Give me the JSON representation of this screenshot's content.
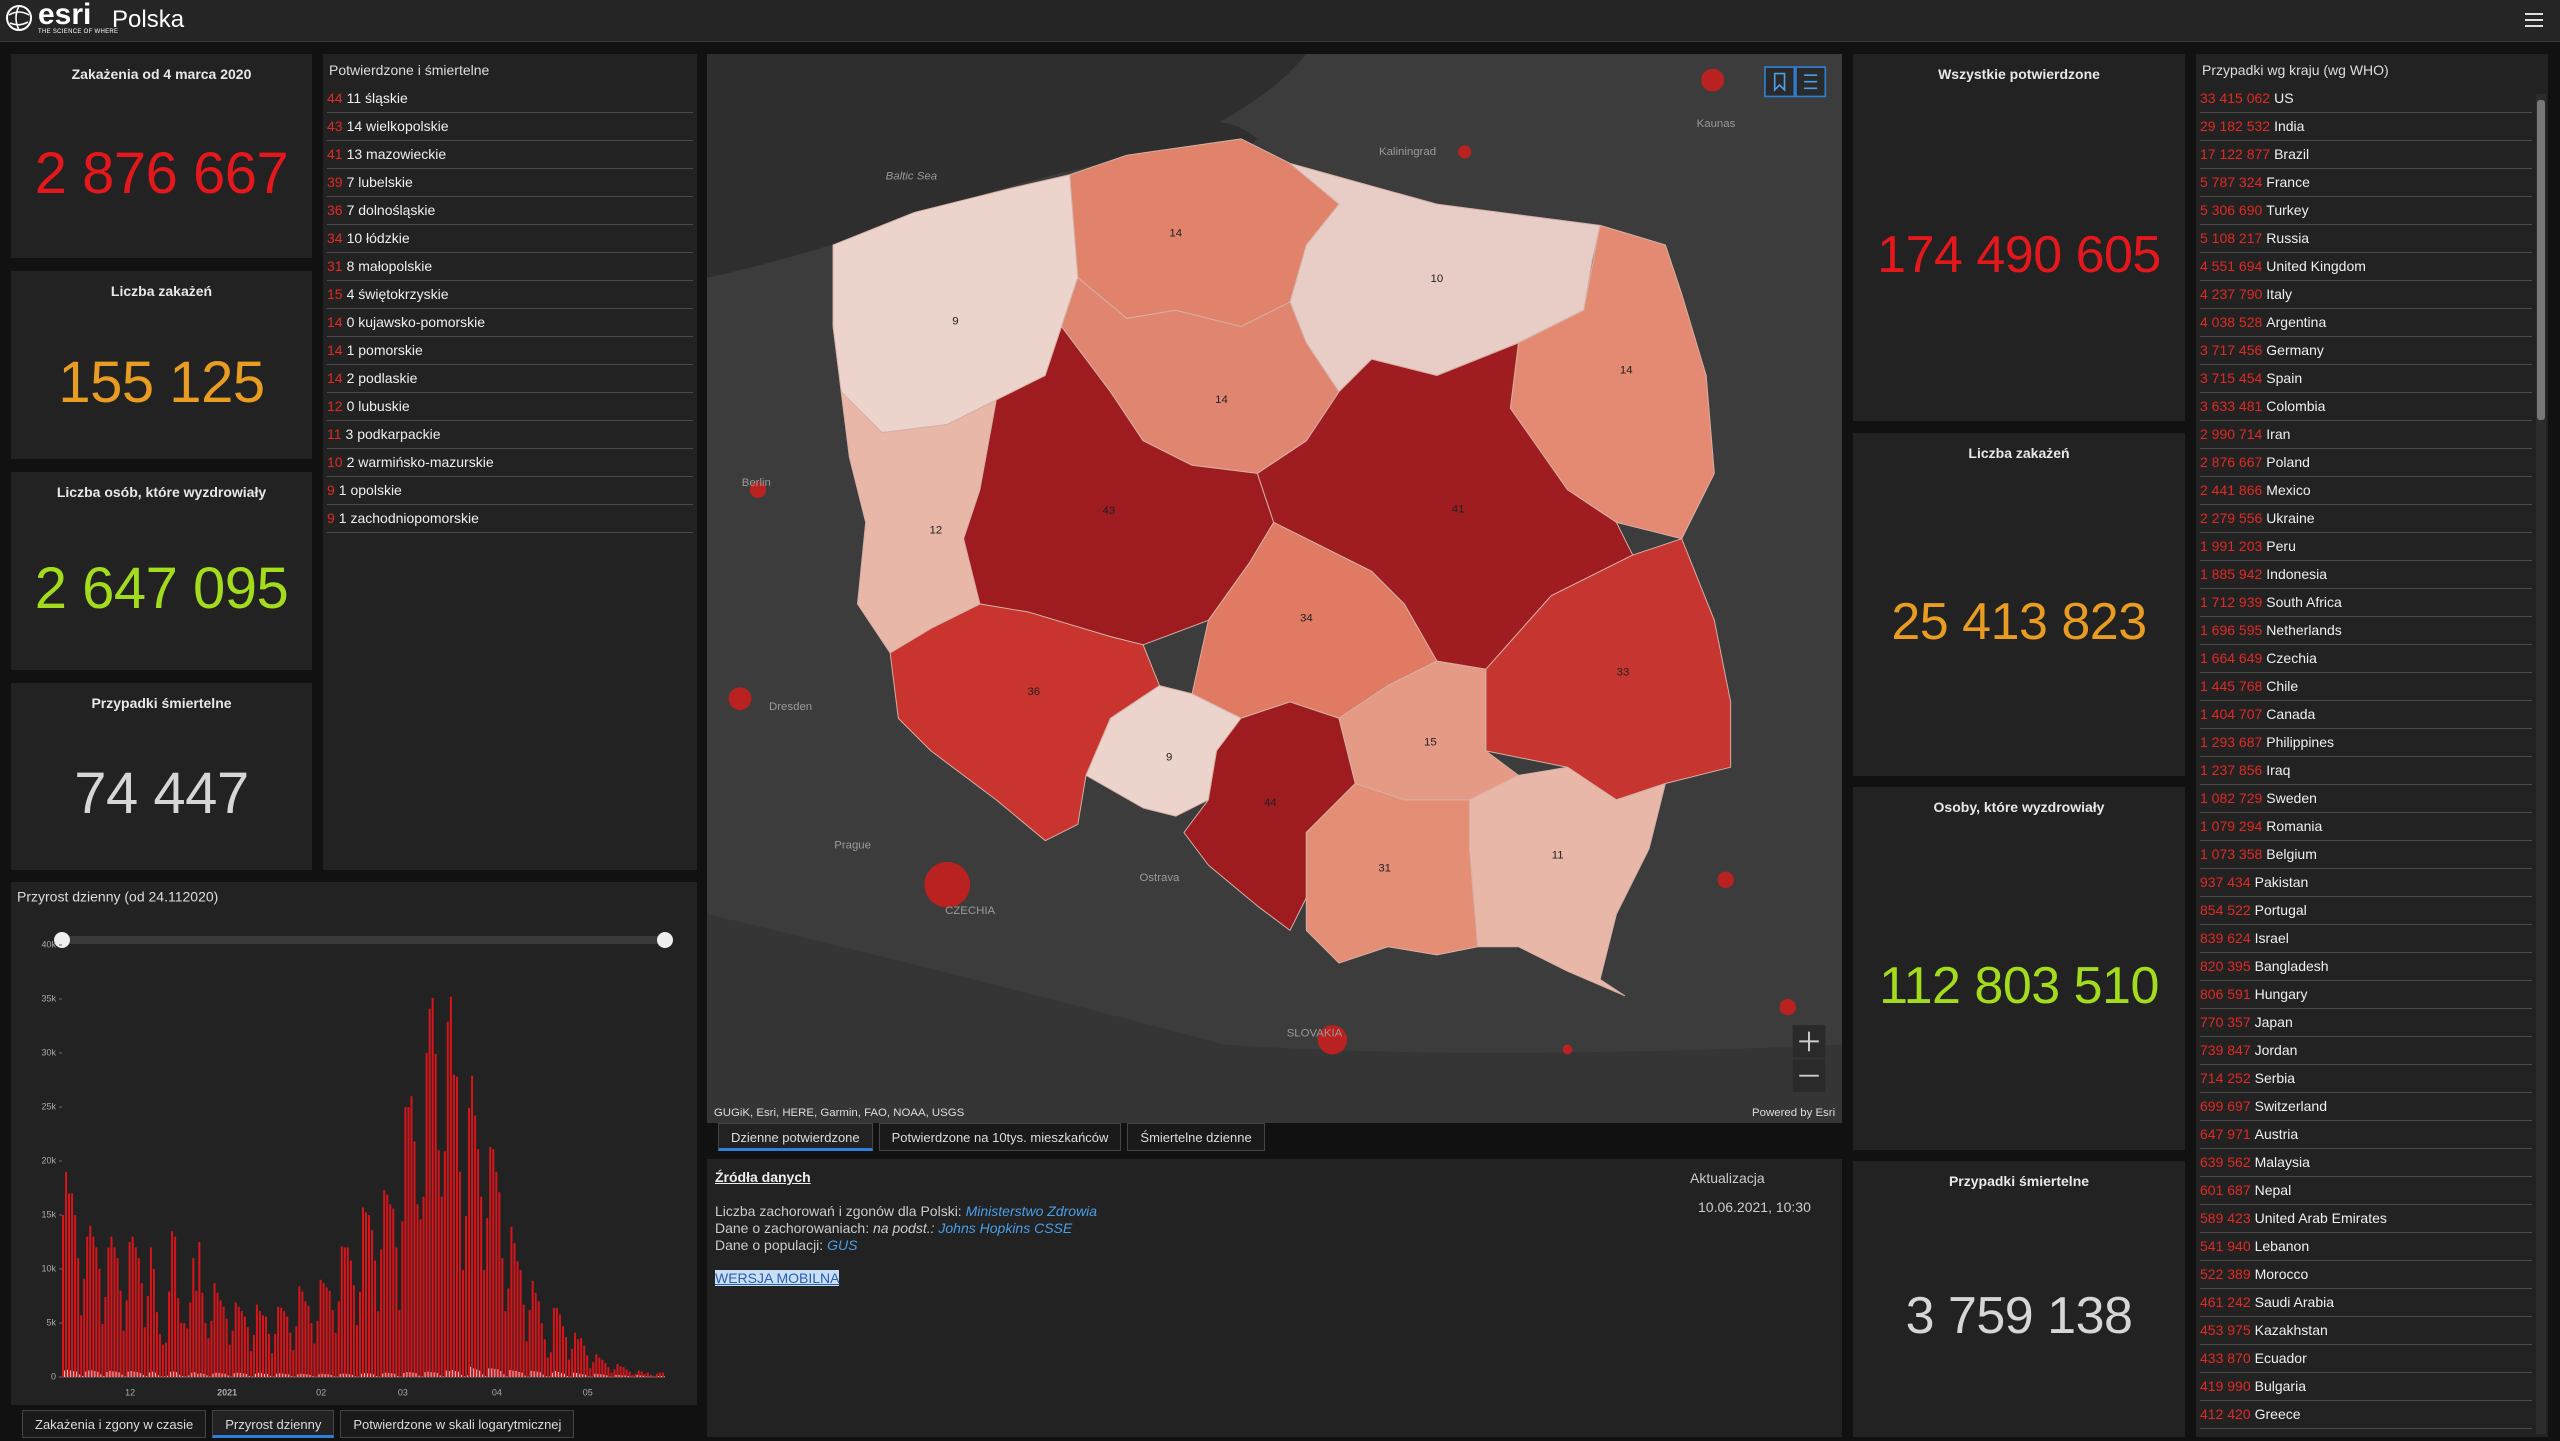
{
  "header": {
    "brand": "esri",
    "tagline": "THE SCIENCE OF WHERE",
    "title": "Polska"
  },
  "stats_left": [
    {
      "label": "Zakażenia  od 4 marca 2020",
      "value": "2 876 667"
    },
    {
      "label": "Liczba zakażeń",
      "value": "155 125"
    },
    {
      "label": "Liczba osób, które wyzdrowiały",
      "value": "2 647 095"
    },
    {
      "label": "Przypadki śmiertelne",
      "value": "74 447"
    }
  ],
  "regions": {
    "title": "Potwierdzone i śmiertelne",
    "rows": [
      {
        "count": "44",
        "text": "11 śląskie"
      },
      {
        "count": "43",
        "text": "14 wielkopolskie"
      },
      {
        "count": "41",
        "text": "13 mazowieckie"
      },
      {
        "count": "39",
        "text": "7 lubelskie"
      },
      {
        "count": "36",
        "text": "7 dolnośląskie"
      },
      {
        "count": "34",
        "text": "10 łódzkie"
      },
      {
        "count": "31",
        "text": "8 małopolskie"
      },
      {
        "count": "15",
        "text": "4 świętokrzyskie"
      },
      {
        "count": "14",
        "text": "0 kujawsko-pomorskie"
      },
      {
        "count": "14",
        "text": "1 pomorskie"
      },
      {
        "count": "14",
        "text": "2 podlaskie"
      },
      {
        "count": "12",
        "text": "0 lubuskie"
      },
      {
        "count": "11",
        "text": "3 podkarpackie"
      },
      {
        "count": "10",
        "text": "2 warmińsko-mazurskie"
      },
      {
        "count": "9",
        "text": "1 opolskie"
      },
      {
        "count": "9",
        "text": "1 zachodniopomorskie"
      }
    ]
  },
  "chart_data": {
    "type": "bar",
    "title": "Przyrost dzienny (od 24.112020)",
    "categories": [
      null,
      null,
      null,
      null,
      null,
      null,
      null,
      null,
      null,
      null,
      null,
      null,
      null,
      null,
      null,
      null,
      null,
      null,
      null,
      null,
      null,
      null,
      "12",
      null,
      null,
      null,
      null,
      null,
      null,
      null,
      null,
      null,
      null,
      null,
      null,
      null,
      null,
      null,
      null,
      null,
      null,
      null,
      null,
      null,
      null,
      null,
      null,
      null,
      null,
      null,
      null,
      null,
      null,
      null,
      "2021",
      null,
      null,
      null,
      null,
      null,
      null,
      null,
      null,
      null,
      null,
      null,
      null,
      null,
      null,
      null,
      null,
      null,
      null,
      null,
      null,
      null,
      null,
      null,
      null,
      null,
      null,
      null,
      null,
      null,
      null,
      "02",
      null,
      null,
      null,
      null,
      null,
      null,
      null,
      null,
      null,
      null,
      null,
      null,
      null,
      null,
      null,
      null,
      null,
      null,
      null,
      null,
      null,
      null,
      null,
      null,
      null,
      null,
      "03",
      null,
      null,
      null,
      null,
      null,
      null,
      null,
      null,
      null,
      null,
      null,
      null,
      null,
      null,
      null,
      null,
      null,
      null,
      null,
      null,
      null,
      null,
      null,
      null,
      null,
      null,
      null,
      null,
      null,
      null,
      "04",
      null,
      null,
      null,
      null,
      null,
      null,
      null,
      null,
      null,
      null,
      null,
      null,
      null,
      null,
      null,
      null,
      null,
      null,
      null,
      null,
      null,
      null,
      null,
      null,
      null,
      null,
      null,
      null,
      null,
      "05",
      null,
      null,
      null,
      null,
      null,
      null,
      null,
      null,
      null,
      null,
      null,
      null,
      null,
      null,
      null,
      null,
      null,
      null,
      null,
      null,
      null,
      null,
      null,
      null,
      null
    ],
    "series": [
      {
        "color": "#d8151b",
        "values": [
          15000,
          19000,
          17000,
          17000,
          15000,
          11000,
          5700,
          9100,
          13000,
          14000,
          13000,
          12000,
          10000,
          4900,
          7400,
          12000,
          13000,
          12000,
          11000,
          8000,
          4300,
          7100,
          12500,
          13000,
          12000,
          11000,
          8700,
          4600,
          7500,
          12000,
          10000,
          6000,
          4000,
          3000,
          3200,
          7900,
          13500,
          13000,
          7300,
          5000,
          5000,
          4500,
          6900,
          11000,
          8000,
          12500,
          7800,
          5000,
          3600,
          5200,
          8700,
          7800,
          7100,
          6500,
          5400,
          3000,
          4300,
          6900,
          6500,
          6100,
          5600,
          4600,
          2400,
          3900,
          6700,
          6100,
          5700,
          5600,
          4000,
          2200,
          4000,
          6500,
          6400,
          6100,
          5600,
          4100,
          2500,
          4700,
          8400,
          7900,
          7000,
          6600,
          5000,
          3100,
          5200,
          9000,
          8700,
          8300,
          8000,
          6200,
          4100,
          7000,
          12100,
          12000,
          12000,
          10800,
          8500,
          4800,
          7900,
          15700,
          15250,
          15000,
          13600,
          10800,
          6100,
          11800,
          17300,
          16900,
          16000,
          15600,
          12000,
          6200,
          14400,
          25000,
          25000,
          26000,
          21800,
          16000,
          14600,
          16700,
          30000,
          34100,
          35100,
          29900,
          21000,
          16700,
          20900,
          32900,
          35200,
          28000,
          27800,
          19000,
          9900,
          14900,
          24900,
          27900,
          24200,
          21100,
          16700,
          9900,
          14700,
          21300,
          21100,
          19000,
          17100,
          11000,
          6100,
          8200,
          13900,
          12400,
          10700,
          9900,
          6700,
          3300,
          6200,
          8900,
          7800,
          7000,
          5000,
          3500,
          1800,
          2300,
          6400,
          6400,
          5800,
          4700,
          3700,
          1600,
          2600,
          4100,
          3500,
          3600,
          2900,
          2000,
          800,
          1400,
          2100,
          1800,
          1600,
          1300,
          900,
          400,
          700,
          1200,
          1000,
          900,
          700,
          500,
          200,
          300,
          600,
          500,
          300,
          400,
          200,
          100,
          300,
          400,
          400
        ]
      },
      {
        "color": "#c8c8c8",
        "values": [
          600,
          670,
          600,
          550,
          500,
          240,
          100,
          500,
          600,
          620,
          550,
          480,
          250,
          90,
          470,
          570,
          520,
          500,
          430,
          220,
          60,
          500,
          560,
          500,
          460,
          380,
          200,
          80,
          420,
          500,
          400,
          150,
          60,
          60,
          120,
          480,
          500,
          450,
          200,
          100,
          50,
          150,
          400,
          450,
          300,
          350,
          300,
          150,
          50,
          300,
          400,
          380,
          330,
          300,
          150,
          40,
          350,
          400,
          380,
          320,
          280,
          100,
          40,
          300,
          400,
          350,
          300,
          280,
          100,
          40,
          300,
          350,
          320,
          280,
          250,
          80,
          30,
          250,
          300,
          280,
          250,
          200,
          80,
          30,
          250,
          300,
          280,
          250,
          200,
          60,
          30,
          280,
          300,
          290,
          260,
          200,
          60,
          30,
          300,
          360,
          340,
          320,
          250,
          80,
          30,
          320,
          400,
          380,
          350,
          300,
          100,
          30,
          380,
          450,
          450,
          400,
          350,
          120,
          40,
          450,
          500,
          450,
          430,
          380,
          150,
          60,
          600,
          550,
          650,
          550,
          500,
          200,
          60,
          150,
          950,
          800,
          700,
          600,
          250,
          80,
          800,
          800,
          760,
          700,
          550,
          250,
          60,
          650,
          580,
          560,
          470,
          400,
          130,
          40,
          580,
          540,
          500,
          450,
          220,
          70,
          50,
          400,
          550,
          470,
          360,
          300,
          90,
          30,
          400,
          380,
          300,
          260,
          200,
          50,
          20,
          300,
          280,
          250,
          220,
          150,
          40,
          10,
          200,
          180,
          150,
          140,
          100,
          30,
          10,
          200,
          150,
          110,
          60,
          50,
          20,
          10,
          80,
          90,
          60
        ]
      }
    ],
    "ylim": [
      0,
      40000
    ],
    "yticks": [
      0,
      {
        "value": 5000,
        "label": "5k"
      },
      {
        "value": 10000,
        "label": "10k"
      },
      {
        "value": 15000,
        "label": "15k"
      },
      {
        "value": 20000,
        "label": "20k"
      },
      {
        "value": 25000,
        "label": "25k"
      },
      {
        "value": 30000,
        "label": "30k"
      },
      {
        "value": 35000,
        "label": "35k"
      },
      {
        "value": 40000,
        "label": "40k"
      }
    ]
  },
  "chart_tabs": [
    "Zakażenia i zgony w czasie",
    "Przyrost dzienny",
    "Potwierdzone w skali logarytmicznej"
  ],
  "map": {
    "region_labels": [
      "14",
      "9",
      "10",
      "14",
      "14",
      "12",
      "43",
      "41",
      "34",
      "36",
      "33",
      "9",
      "44",
      "15",
      "31",
      "11"
    ],
    "places": [
      "Kaliningrad",
      "Kaunas",
      "Berlin",
      "Dresden",
      "Prague",
      "CZECHIA",
      "Ostrava",
      "SLOVAKIA",
      "Baltic Sea"
    ],
    "attribution": "GUGiK, Esri, HERE, Garmin, FAO, NOAA, USGS",
    "powered": "Powered by Esri"
  },
  "map_tabs": [
    "Dzienne potwierdzone",
    "Potwierdzone na 10tys. mieszkańców",
    "Śmiertelne dzienne"
  ],
  "sources": {
    "title": "Źródła danych",
    "update_label": "Aktualizacja",
    "update_value": "10.06.2021, 10:30",
    "line1": "Liczba zachorowań i zgonów dla Polski:",
    "line1_link": "Ministerstwo Zdrowia",
    "line2": "Dane o zachorowaniach:",
    "line2_note": "na podst.:",
    "line2_link": "Johns Hopkins CSSE",
    "line3": "Dane o populacji:",
    "line3_link": "GUS",
    "mobile": "WERSJA MOBILNA"
  },
  "stats_right": [
    {
      "label": "Wszystkie potwierdzone",
      "value": "174 490 605"
    },
    {
      "label": "Liczba zakażeń",
      "value": "25 413 823"
    },
    {
      "label": "Osoby, które wyzdrowiały",
      "value": "112 803 510"
    },
    {
      "label": "Przypadki śmiertelne",
      "value": "3 759 138"
    }
  ],
  "countries": {
    "title": "Przypadki wg kraju (wg WHO)",
    "rows": [
      {
        "value": "33 415 062",
        "name": "US"
      },
      {
        "value": "29 182 532",
        "name": "India"
      },
      {
        "value": "17 122 877",
        "name": "Brazil"
      },
      {
        "value": "5 787 324",
        "name": "France"
      },
      {
        "value": "5 306 690",
        "name": "Turkey"
      },
      {
        "value": "5 108 217",
        "name": "Russia"
      },
      {
        "value": "4 551 694",
        "name": "United Kingdom"
      },
      {
        "value": "4 237 790",
        "name": "Italy"
      },
      {
        "value": "4 038 528",
        "name": "Argentina"
      },
      {
        "value": "3 717 456",
        "name": "Germany"
      },
      {
        "value": "3 715 454",
        "name": "Spain"
      },
      {
        "value": "3 633 481",
        "name": "Colombia"
      },
      {
        "value": "2 990 714",
        "name": "Iran"
      },
      {
        "value": "2 876 667",
        "name": "Poland"
      },
      {
        "value": "2 441 866",
        "name": "Mexico"
      },
      {
        "value": "2 279 556",
        "name": "Ukraine"
      },
      {
        "value": "1 991 203",
        "name": "Peru"
      },
      {
        "value": "1 885 942",
        "name": "Indonesia"
      },
      {
        "value": "1 712 939",
        "name": "South Africa"
      },
      {
        "value": "1 696 595",
        "name": "Netherlands"
      },
      {
        "value": "1 664 649",
        "name": "Czechia"
      },
      {
        "value": "1 445 768",
        "name": "Chile"
      },
      {
        "value": "1 404 707",
        "name": "Canada"
      },
      {
        "value": "1 293 687",
        "name": "Philippines"
      },
      {
        "value": "1 237 856",
        "name": "Iraq"
      },
      {
        "value": "1 082 729",
        "name": "Sweden"
      },
      {
        "value": "1 079 294",
        "name": "Romania"
      },
      {
        "value": "1 073 358",
        "name": "Belgium"
      },
      {
        "value": "937 434",
        "name": "Pakistan"
      },
      {
        "value": "854 522",
        "name": "Portugal"
      },
      {
        "value": "839 624",
        "name": "Israel"
      },
      {
        "value": "820 395",
        "name": "Bangladesh"
      },
      {
        "value": "806 591",
        "name": "Hungary"
      },
      {
        "value": "770 357",
        "name": "Japan"
      },
      {
        "value": "739 847",
        "name": "Jordan"
      },
      {
        "value": "714 252",
        "name": "Serbia"
      },
      {
        "value": "699 697",
        "name": "Switzerland"
      },
      {
        "value": "647 971",
        "name": "Austria"
      },
      {
        "value": "639 562",
        "name": "Malaysia"
      },
      {
        "value": "601 687",
        "name": "Nepal"
      },
      {
        "value": "589 423",
        "name": "United Arab Emirates"
      },
      {
        "value": "541 940",
        "name": "Lebanon"
      },
      {
        "value": "522 389",
        "name": "Morocco"
      },
      {
        "value": "461 242",
        "name": "Saudi Arabia"
      },
      {
        "value": "453 975",
        "name": "Kazakhstan"
      },
      {
        "value": "433 870",
        "name": "Ecuador"
      },
      {
        "value": "419 990",
        "name": "Bulgaria"
      },
      {
        "value": "412 420",
        "name": "Greece"
      }
    ]
  }
}
